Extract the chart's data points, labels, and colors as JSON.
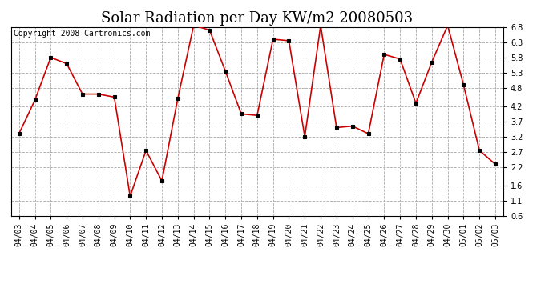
{
  "title": "Solar Radiation per Day KW/m2 20080503",
  "copyright_text": "Copyright 2008 Cartronics.com",
  "dates": [
    "04/03",
    "04/04",
    "04/05",
    "04/06",
    "04/07",
    "04/08",
    "04/09",
    "04/10",
    "04/11",
    "04/12",
    "04/13",
    "04/14",
    "04/15",
    "04/16",
    "04/17",
    "04/18",
    "04/19",
    "04/20",
    "04/21",
    "04/22",
    "04/23",
    "04/24",
    "04/25",
    "04/26",
    "04/27",
    "04/28",
    "04/29",
    "04/30",
    "05/01",
    "05/02",
    "05/03"
  ],
  "values": [
    3.3,
    4.4,
    5.8,
    5.6,
    4.6,
    4.6,
    4.5,
    1.25,
    2.75,
    1.75,
    4.45,
    6.85,
    6.7,
    5.35,
    3.95,
    3.9,
    6.4,
    6.35,
    3.2,
    6.85,
    3.5,
    3.55,
    3.3,
    5.9,
    5.75,
    4.3,
    5.65,
    6.85,
    4.9,
    2.75,
    2.3
  ],
  "line_color": "#cc0000",
  "marker": "s",
  "marker_size": 3,
  "marker_facecolor": "#000000",
  "marker_edgecolor": "#000000",
  "grid_color": "#aaaaaa",
  "background_color": "#ffffff",
  "ylim": [
    0.6,
    6.8
  ],
  "yticks": [
    0.6,
    1.1,
    1.6,
    2.2,
    2.7,
    3.2,
    3.7,
    4.2,
    4.8,
    5.3,
    5.8,
    6.3,
    6.8
  ],
  "title_fontsize": 13,
  "copyright_fontsize": 7,
  "tick_fontsize": 7,
  "figsize": [
    6.9,
    3.75
  ],
  "dpi": 100
}
